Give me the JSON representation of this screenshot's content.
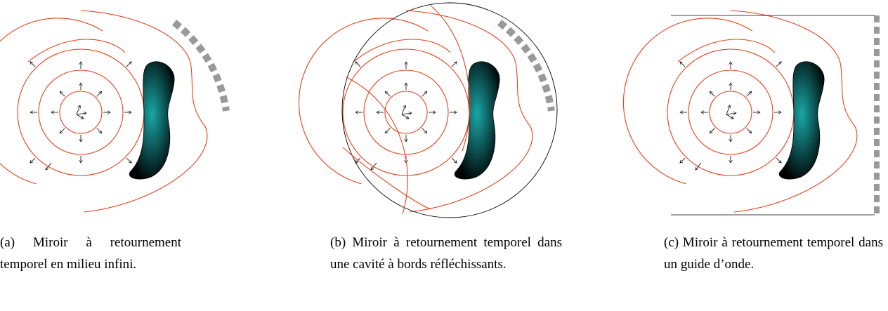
{
  "captions": [
    "(a) Miroir à retournement temporel en milieu infini.",
    "(b) Miroir à retournement temporel dans une cavité à bords réfléchissants.",
    "(c) Miroir à retournement temporel dans un guide d’onde."
  ]
}
